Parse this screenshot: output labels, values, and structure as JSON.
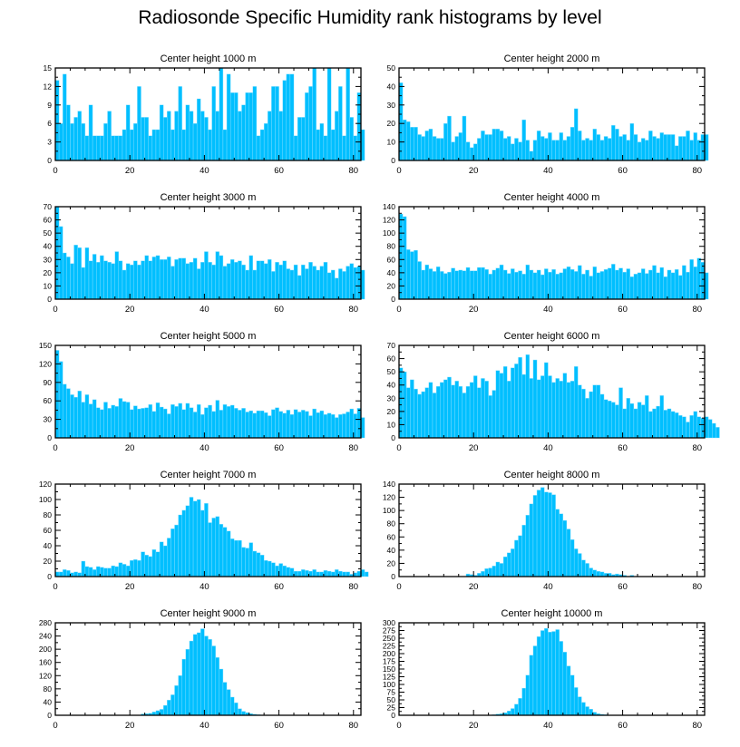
{
  "title": "Radiosonde Specific Humidity rank histograms by level",
  "colors": {
    "bar": "#00BFFF",
    "bar_edge": "#8FE0FF",
    "axis": "#000000"
  },
  "chart_data": [
    {
      "type": "bar",
      "title": "Center height 1000 m",
      "xlabel": "",
      "ylabel": "",
      "xlim": [
        0,
        82
      ],
      "xticks": [
        0,
        20,
        40,
        60,
        80
      ],
      "ylim": [
        0,
        15
      ],
      "yticks": [
        0,
        3,
        6,
        9,
        12,
        15
      ],
      "values": [
        13,
        6,
        14,
        9,
        6,
        7,
        8,
        6,
        4,
        9,
        4,
        4,
        4,
        6,
        8,
        4,
        4,
        4,
        5,
        9,
        5,
        6,
        12,
        7,
        7,
        4,
        5,
        5,
        9,
        7,
        8,
        5,
        8,
        12,
        5,
        9,
        8,
        6,
        10,
        8,
        7,
        5,
        12,
        8,
        15,
        5,
        14,
        11,
        11,
        8,
        9,
        11,
        11,
        12,
        4,
        5,
        6,
        8,
        12,
        12,
        8,
        13,
        14,
        14,
        4,
        7,
        7,
        11,
        12,
        15,
        5,
        6,
        4,
        15,
        5,
        8,
        12,
        4,
        15,
        7,
        4,
        11,
        5
      ]
    },
    {
      "type": "bar",
      "title": "Center height 2000 m",
      "xlabel": "",
      "ylabel": "",
      "xlim": [
        0,
        82
      ],
      "xticks": [
        0,
        20,
        40,
        60,
        80
      ],
      "ylim": [
        0,
        50
      ],
      "yticks": [
        0,
        10,
        20,
        30,
        40,
        50
      ],
      "values": [
        42,
        22,
        21,
        18,
        18,
        14,
        13,
        16,
        17,
        13,
        12,
        12,
        20,
        24,
        10,
        13,
        15,
        24,
        10,
        7,
        9,
        12,
        16,
        14,
        14,
        17,
        17,
        16,
        12,
        13,
        9,
        12,
        10,
        22,
        11,
        5,
        11,
        16,
        13,
        12,
        15,
        11,
        11,
        15,
        11,
        13,
        18,
        28,
        16,
        11,
        12,
        11,
        17,
        14,
        11,
        13,
        12,
        19,
        17,
        13,
        14,
        11,
        20,
        14,
        10,
        12,
        11,
        16,
        13,
        12,
        15,
        14,
        14,
        14,
        8,
        13,
        13,
        16,
        11,
        15,
        11,
        14,
        14
      ]
    },
    {
      "type": "bar",
      "title": "Center height 3000 m",
      "xlabel": "",
      "ylabel": "",
      "xlim": [
        0,
        82
      ],
      "xticks": [
        0,
        20,
        40,
        60,
        80
      ],
      "ylim": [
        0,
        70
      ],
      "yticks": [
        0,
        10,
        20,
        30,
        40,
        50,
        60,
        70
      ],
      "values": [
        70,
        55,
        35,
        32,
        27,
        41,
        39,
        24,
        39,
        29,
        34,
        28,
        33,
        29,
        28,
        27,
        36,
        29,
        22,
        27,
        26,
        29,
        26,
        29,
        33,
        29,
        32,
        33,
        30,
        30,
        32,
        25,
        30,
        31,
        31,
        27,
        28,
        31,
        23,
        28,
        36,
        28,
        26,
        36,
        33,
        25,
        27,
        30,
        28,
        29,
        26,
        22,
        33,
        22,
        29,
        29,
        27,
        30,
        21,
        28,
        26,
        29,
        23,
        22,
        26,
        18,
        26,
        23,
        28,
        25,
        22,
        25,
        28,
        20,
        22,
        16,
        23,
        21,
        25,
        27,
        24,
        25,
        22
      ]
    },
    {
      "type": "bar",
      "title": "Center height 4000 m",
      "xlabel": "",
      "ylabel": "",
      "xlim": [
        0,
        82
      ],
      "xticks": [
        0,
        20,
        40,
        60,
        80
      ],
      "ylim": [
        0,
        140
      ],
      "yticks": [
        0,
        20,
        40,
        60,
        80,
        100,
        120,
        140
      ],
      "values": [
        129,
        125,
        75,
        72,
        74,
        57,
        44,
        52,
        46,
        42,
        49,
        42,
        39,
        41,
        47,
        43,
        44,
        43,
        48,
        43,
        43,
        48,
        48,
        45,
        38,
        44,
        47,
        52,
        44,
        39,
        46,
        41,
        43,
        38,
        52,
        44,
        40,
        44,
        37,
        46,
        41,
        45,
        38,
        40,
        46,
        49,
        45,
        42,
        51,
        38,
        44,
        35,
        49,
        40,
        42,
        45,
        47,
        53,
        44,
        47,
        41,
        46,
        34,
        38,
        40,
        46,
        39,
        44,
        51,
        40,
        48,
        34,
        44,
        40,
        45,
        36,
        51,
        41,
        60,
        49,
        62,
        56,
        40
      ]
    },
    {
      "type": "bar",
      "title": "Center height 5000 m",
      "xlabel": "",
      "ylabel": "",
      "xlim": [
        0,
        82
      ],
      "xticks": [
        0,
        20,
        40,
        60,
        80
      ],
      "ylim": [
        0,
        150
      ],
      "yticks": [
        0,
        30,
        60,
        90,
        120,
        150
      ],
      "values": [
        142,
        124,
        87,
        80,
        70,
        66,
        76,
        58,
        70,
        55,
        62,
        49,
        46,
        58,
        48,
        53,
        51,
        64,
        59,
        58,
        46,
        52,
        47,
        48,
        49,
        54,
        43,
        57,
        50,
        47,
        39,
        54,
        51,
        56,
        46,
        56,
        49,
        42,
        54,
        38,
        49,
        53,
        43,
        61,
        45,
        54,
        51,
        53,
        48,
        45,
        48,
        42,
        44,
        40,
        44,
        44,
        41,
        36,
        46,
        49,
        43,
        40,
        45,
        38,
        46,
        42,
        45,
        43,
        36,
        47,
        41,
        44,
        38,
        40,
        38,
        33,
        38,
        39,
        42,
        47,
        39,
        48,
        33
      ]
    },
    {
      "type": "bar",
      "title": "Center height 6000 m",
      "xlabel": "",
      "ylabel": "",
      "xlim": [
        0,
        82
      ],
      "xticks": [
        0,
        20,
        40,
        60,
        80
      ],
      "ylim": [
        0,
        70
      ],
      "yticks": [
        0,
        10,
        20,
        30,
        40,
        50,
        60,
        70
      ],
      "values": [
        53,
        50,
        38,
        44,
        37,
        33,
        35,
        38,
        42,
        34,
        39,
        42,
        44,
        46,
        40,
        43,
        39,
        34,
        39,
        42,
        47,
        38,
        45,
        43,
        32,
        36,
        51,
        49,
        54,
        43,
        53,
        56,
        61,
        48,
        63,
        45,
        59,
        44,
        47,
        57,
        47,
        42,
        45,
        43,
        49,
        42,
        43,
        54,
        40,
        37,
        30,
        35,
        40,
        40,
        33,
        29,
        28,
        27,
        25,
        38,
        22,
        30,
        26,
        22,
        27,
        25,
        32,
        20,
        22,
        24,
        32,
        21,
        22,
        20,
        19,
        17,
        16,
        12,
        17,
        20,
        16,
        15,
        16,
        14,
        11,
        8
      ]
    },
    {
      "type": "bar",
      "title": "Center height 7000 m",
      "xlabel": "",
      "ylabel": "",
      "xlim": [
        0,
        82
      ],
      "xticks": [
        0,
        20,
        40,
        60,
        80
      ],
      "ylim": [
        0,
        120
      ],
      "yticks": [
        0,
        20,
        40,
        60,
        80,
        100,
        120
      ],
      "values": [
        6,
        6,
        9,
        8,
        5,
        6,
        5,
        20,
        13,
        12,
        9,
        13,
        12,
        11,
        11,
        14,
        13,
        18,
        16,
        14,
        21,
        22,
        21,
        32,
        28,
        26,
        35,
        32,
        45,
        40,
        50,
        62,
        67,
        80,
        86,
        92,
        103,
        98,
        100,
        86,
        95,
        70,
        76,
        78,
        68,
        64,
        59,
        49,
        47,
        47,
        38,
        37,
        44,
        33,
        31,
        28,
        21,
        20,
        18,
        14,
        17,
        14,
        12,
        11,
        7,
        7,
        9,
        8,
        7,
        9,
        6,
        6,
        8,
        7,
        6,
        9,
        7,
        6,
        6,
        3,
        5,
        7,
        9,
        6
      ]
    },
    {
      "type": "bar",
      "title": "Center height 8000 m",
      "xlabel": "",
      "ylabel": "",
      "xlim": [
        0,
        82
      ],
      "xticks": [
        0,
        20,
        40,
        60,
        80
      ],
      "ylim": [
        0,
        140
      ],
      "yticks": [
        0,
        20,
        40,
        60,
        80,
        100,
        120,
        140
      ],
      "values": [
        0,
        0,
        0,
        0,
        0,
        0,
        0,
        0,
        0,
        0,
        0,
        0,
        0,
        0,
        0,
        0,
        0,
        0,
        4,
        3,
        2,
        5,
        8,
        12,
        13,
        16,
        22,
        20,
        30,
        36,
        42,
        55,
        62,
        78,
        93,
        110,
        123,
        131,
        135,
        128,
        127,
        124,
        102,
        95,
        85,
        72,
        56,
        42,
        35,
        25,
        20,
        13,
        10,
        8,
        7,
        5,
        5,
        3,
        4,
        3,
        2,
        0,
        2,
        0,
        0,
        0,
        0,
        0,
        0,
        0,
        0,
        0,
        0,
        0,
        0,
        0,
        0,
        0,
        0,
        0,
        0,
        0
      ]
    },
    {
      "type": "bar",
      "title": "Center height 9000 m",
      "xlabel": "",
      "ylabel": "",
      "xlim": [
        0,
        82
      ],
      "xticks": [
        0,
        20,
        40,
        60,
        80
      ],
      "ylim": [
        0,
        280
      ],
      "yticks": [
        0,
        40,
        80,
        120,
        160,
        200,
        240,
        280
      ],
      "values": [
        0,
        0,
        0,
        0,
        0,
        0,
        0,
        0,
        0,
        0,
        0,
        0,
        0,
        0,
        0,
        0,
        0,
        0,
        0,
        0,
        0,
        0,
        0,
        4,
        5,
        6,
        10,
        14,
        18,
        30,
        46,
        62,
        90,
        120,
        170,
        200,
        225,
        245,
        250,
        262,
        240,
        230,
        210,
        175,
        140,
        100,
        78,
        55,
        38,
        20,
        12,
        8,
        5,
        3,
        2,
        0,
        0,
        0,
        0,
        0,
        0,
        0,
        0,
        0,
        0,
        0,
        0,
        0,
        0,
        0,
        0,
        0,
        0,
        0,
        0,
        0,
        0,
        0,
        0,
        0,
        0,
        0
      ]
    },
    {
      "type": "bar",
      "title": "Center height 10000 m",
      "xlabel": "",
      "ylabel": "",
      "xlim": [
        0,
        82
      ],
      "xticks": [
        0,
        20,
        40,
        60,
        80
      ],
      "ylim": [
        0,
        300
      ],
      "yticks": [
        0,
        25,
        50,
        75,
        100,
        125,
        150,
        175,
        200,
        225,
        250,
        275,
        300
      ],
      "values": [
        0,
        0,
        0,
        0,
        0,
        0,
        0,
        0,
        0,
        0,
        0,
        0,
        0,
        0,
        0,
        0,
        0,
        0,
        0,
        0,
        0,
        0,
        0,
        0,
        0,
        2,
        4,
        5,
        8,
        14,
        22,
        36,
        55,
        88,
        130,
        195,
        225,
        255,
        275,
        282,
        270,
        272,
        278,
        240,
        205,
        160,
        130,
        90,
        60,
        42,
        28,
        20,
        10,
        5,
        3,
        2,
        0,
        0,
        0,
        0,
        0,
        0,
        0,
        0,
        0,
        0,
        0,
        0,
        0,
        0,
        0,
        0,
        0,
        0,
        0,
        0,
        0,
        0,
        0,
        0,
        0,
        0
      ]
    }
  ]
}
